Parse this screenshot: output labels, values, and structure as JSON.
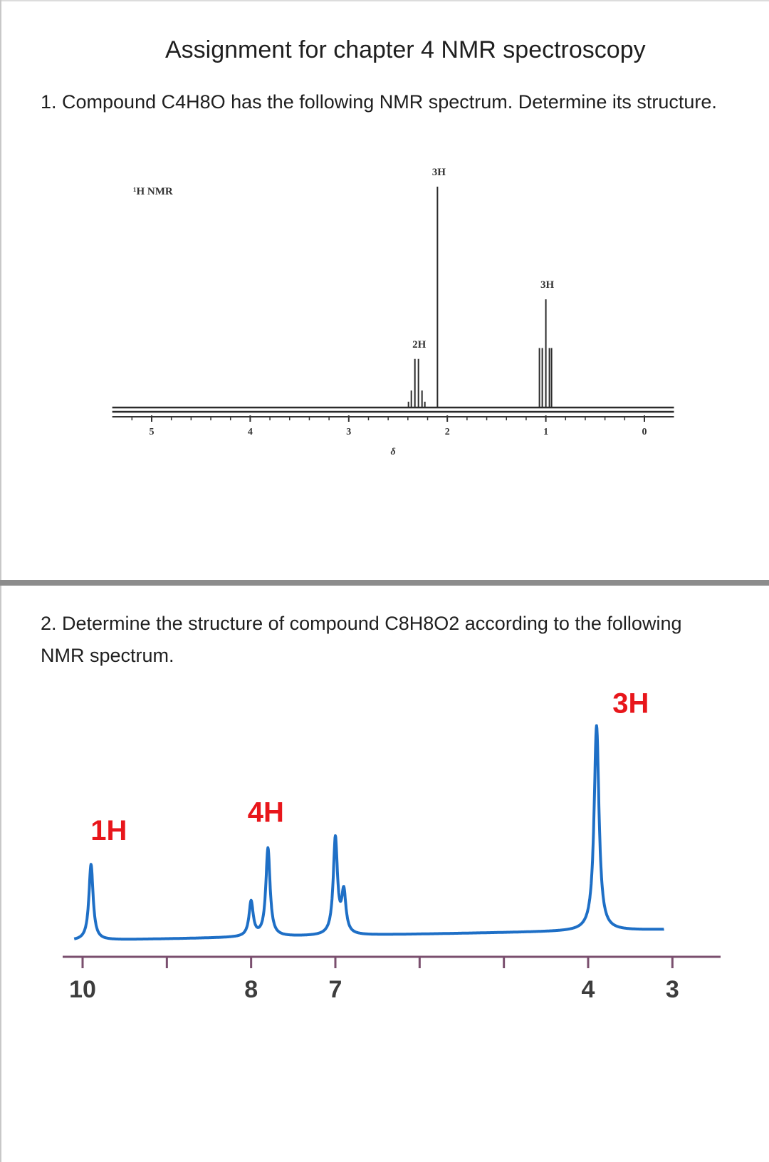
{
  "title": "Assignment for chapter 4 NMR spectroscopy",
  "question1": {
    "text": "1. Compound C4H8O has the following NMR spectrum. Determine its structure.",
    "chart_data": {
      "type": "line",
      "title": "¹H NMR",
      "xlabel": "δ",
      "ylabel": "",
      "xlim": [
        5.4,
        -0.3
      ],
      "x_ticks": [
        5,
        4,
        3,
        2,
        1,
        0
      ],
      "peaks": [
        {
          "shift": 2.3,
          "integration": "2H",
          "multiplicity": "quartet",
          "relative_height": 0.22
        },
        {
          "shift": 2.1,
          "integration": "3H",
          "multiplicity": "singlet",
          "relative_height": 1.0
        },
        {
          "shift": 1.0,
          "integration": "3H",
          "multiplicity": "triplet",
          "relative_height": 0.49
        }
      ]
    }
  },
  "question2": {
    "text": "2. Determine the structure of compound C8H8O2 according to the following NMR spectrum.",
    "chart_data": {
      "type": "line",
      "title": "",
      "xlabel": "",
      "ylabel": "",
      "xlim": [
        10.1,
        2.85
      ],
      "x_ticks": [
        10,
        9,
        8,
        7,
        6,
        5,
        4,
        3
      ],
      "x_tick_labels": [
        "10",
        "",
        "8",
        "7",
        "",
        "",
        "4",
        "3"
      ],
      "peaks": [
        {
          "shift": 9.9,
          "integration": "1H",
          "relative_height": 0.37,
          "label": "1H"
        },
        {
          "shift": 8.0,
          "integration": "",
          "relative_height": 0.17,
          "label": ""
        },
        {
          "shift": 7.8,
          "integration": "4H",
          "relative_height": 0.43,
          "label": "4H"
        },
        {
          "shift": 7.0,
          "integration": "",
          "relative_height": 0.47,
          "label": ""
        },
        {
          "shift": 6.9,
          "integration": "",
          "relative_height": 0.2,
          "label": ""
        },
        {
          "shift": 3.9,
          "integration": "3H",
          "relative_height": 1.0,
          "label": "3H"
        }
      ],
      "colors": {
        "trace": "#1e6fc6",
        "axis": "#7a4f6e",
        "labels": "#e8161b"
      }
    }
  }
}
